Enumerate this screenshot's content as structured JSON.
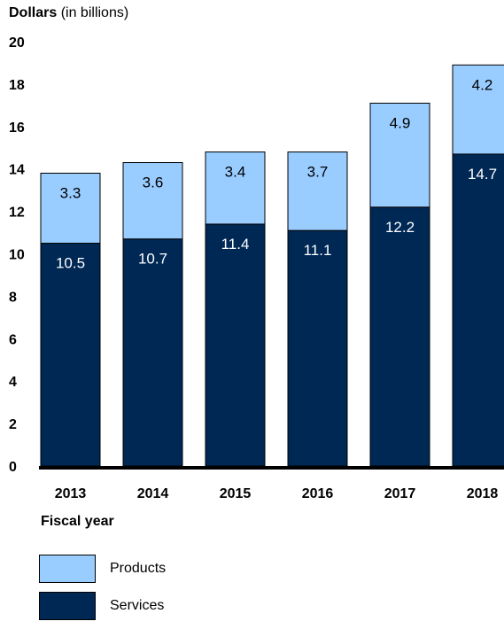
{
  "chart_data": {
    "type": "bar",
    "stacked": true,
    "ylabel_bold": "Dollars",
    "ylabel_rest": "(in billions)",
    "xlabel": "Fiscal year",
    "ylim": [
      0,
      20
    ],
    "yticks": [
      "0",
      "2",
      "4",
      "6",
      "8",
      "10",
      "12",
      "14",
      "16",
      "18",
      "20"
    ],
    "categories": [
      "2013",
      "2014",
      "2015",
      "2016",
      "2017",
      "2018"
    ],
    "series": [
      {
        "name": "Services",
        "color": "#002855",
        "label_color": "#ffffff",
        "values": [
          10.5,
          10.7,
          11.4,
          11.1,
          12.2,
          14.7
        ],
        "labels": [
          "10.5",
          "10.7",
          "11.4",
          "11.1",
          "12.2",
          "14.7"
        ]
      },
      {
        "name": "Products",
        "color": "#99ccff",
        "label_color": "#000000",
        "values": [
          3.3,
          3.6,
          3.4,
          3.7,
          4.9,
          4.2
        ],
        "labels": [
          "3.3",
          "3.6",
          "3.4",
          "3.7",
          "4.9",
          "4.2"
        ]
      }
    ],
    "legend_position": "bottom-left",
    "grid": false
  },
  "legend": {
    "products_label": "Products",
    "services_label": "Services"
  }
}
